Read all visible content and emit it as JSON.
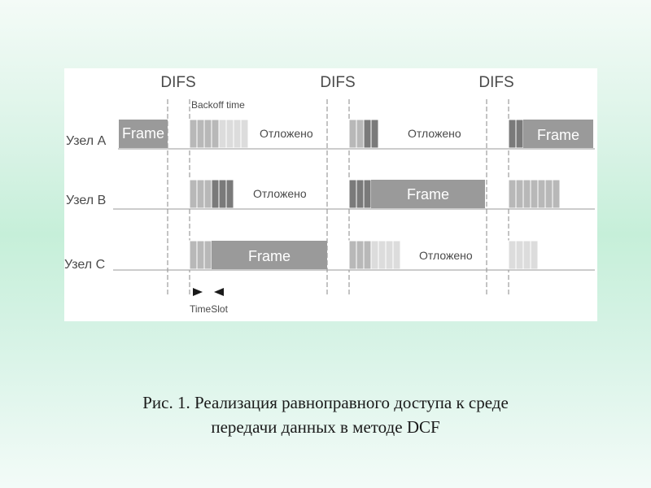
{
  "diagram": {
    "difs_labels": [
      "DIFS",
      "DIFS",
      "DIFS"
    ],
    "backoff_label": "Backoff time",
    "timeslot_label": "TimeSlot",
    "nodes": [
      "Узел A",
      "Узел B",
      "Узел C"
    ],
    "frame_label": "Frame",
    "deferred_label": "Отложено",
    "colors": {
      "frame": "#9a9a9a",
      "slot_used": "#b8b8b8",
      "slot_current": "#7a7a7a",
      "slot_remaining": "#dcdcdc",
      "divider": "#8a8a8a"
    }
  },
  "caption": {
    "line1": "Рис. 1. Реализация равноправного доступа к среде",
    "line2": "передачи данных в методе DCF"
  }
}
